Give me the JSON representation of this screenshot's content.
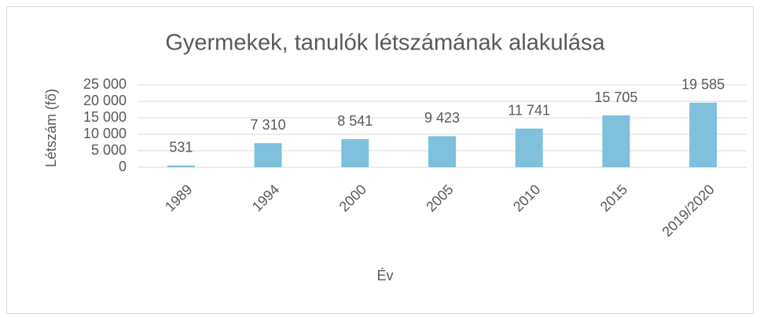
{
  "chart_data": {
    "type": "bar",
    "title": "Gyermekek, tanulók létszámának alakulása",
    "x_label": "Év",
    "y_label": "Létszám (fő)",
    "categories": [
      "1989",
      "1994",
      "2000",
      "2005",
      "2010",
      "2015",
      "2019/2020"
    ],
    "values": [
      531,
      7310,
      8541,
      9423,
      11741,
      15705,
      19585
    ],
    "value_labels": [
      "531",
      "7 310",
      "8 541",
      "9 423",
      "11 741",
      "15 705",
      "19 585"
    ],
    "color": "#7fc0dc",
    "ylim": [
      0,
      25000
    ],
    "yticks": [
      0,
      {
        "value": 5000,
        "label": "5 000"
      },
      {
        "value": 10000,
        "label": "10 000"
      },
      {
        "value": 15000,
        "label": "15 000"
      },
      {
        "value": 20000,
        "label": "20 000"
      },
      {
        "value": 25000,
        "label": "25 000"
      }
    ],
    "grid": true
  }
}
